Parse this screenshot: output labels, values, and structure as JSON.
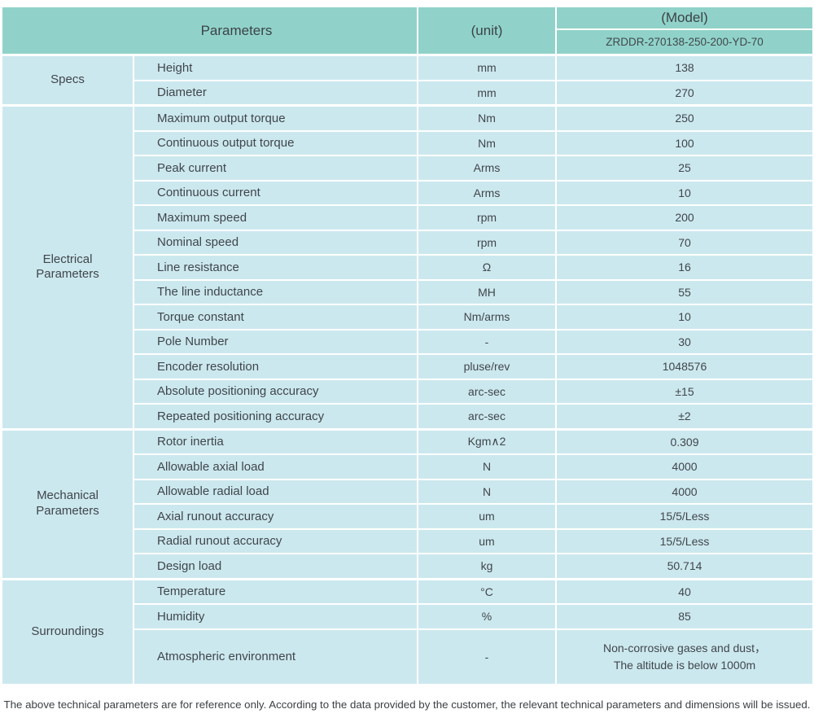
{
  "header": {
    "parameters_label": "Parameters",
    "unit_label": "(unit)",
    "model_label": "(Model)",
    "model_number": "ZRDDR-270138-250-200-YD-70"
  },
  "groups": [
    {
      "label": "Specs",
      "rows": [
        {
          "name": "Height",
          "unit": "mm",
          "value": "138"
        },
        {
          "name": "Diameter",
          "unit": "mm",
          "value": "270"
        }
      ]
    },
    {
      "label": "Electrical Parameters",
      "rows": [
        {
          "name": "Maximum output torque",
          "unit": "Nm",
          "value": "250"
        },
        {
          "name": "Continuous output torque",
          "unit": "Nm",
          "value": "100"
        },
        {
          "name": "Peak current",
          "unit": "Arms",
          "value": "25"
        },
        {
          "name": "Continuous current",
          "unit": "Arms",
          "value": "10"
        },
        {
          "name": "Maximum speed",
          "unit": "rpm",
          "value": "200"
        },
        {
          "name": "Nominal speed",
          "unit": "rpm",
          "value": "70"
        },
        {
          "name": "Line resistance",
          "unit": "Ω",
          "value": "16"
        },
        {
          "name": "The line inductance",
          "unit": "MH",
          "value": "55"
        },
        {
          "name": "Torque constant",
          "unit": "Nm/arms",
          "value": "10"
        },
        {
          "name": "Pole Number",
          "unit": "-",
          "value": "30"
        },
        {
          "name": "Encoder resolution",
          "unit": "pluse/rev",
          "value": "1048576"
        },
        {
          "name": "Absolute positioning accuracy",
          "unit": "arc-sec",
          "value": "±15"
        },
        {
          "name": "Repeated positioning accuracy",
          "unit": "arc-sec",
          "value": "±2"
        }
      ]
    },
    {
      "label": "Mechanical Parameters",
      "rows": [
        {
          "name": "Rotor inertia",
          "unit": "Kgm∧2",
          "value": "0.309"
        },
        {
          "name": "Allowable axial load",
          "unit": "N",
          "value": "4000"
        },
        {
          "name": "Allowable radial load",
          "unit": "N",
          "value": "4000"
        },
        {
          "name": "Axial runout accuracy",
          "unit": "um",
          "value": "15/5/Less"
        },
        {
          "name": "Radial runout accuracy",
          "unit": "um",
          "value": "15/5/Less"
        },
        {
          "name": "Design load",
          "unit": "kg",
          "value": "50.714"
        }
      ]
    },
    {
      "label": "Surroundings",
      "rows": [
        {
          "name": "Temperature",
          "unit": "°C",
          "value": "40"
        },
        {
          "name": "Humidity",
          "unit": "%",
          "value": "85"
        },
        {
          "name": "Atmospheric environment",
          "unit": "-",
          "value": "Non-corrosive gases and dust，\nThe altitude is below 1000m"
        }
      ]
    }
  ],
  "footer": {
    "note": "The above technical parameters are for reference only. According to the data provided by the customer, the relevant technical parameters and dimensions will be issued."
  },
  "colors": {
    "header_bg": "#90d2c9",
    "cell_bg": "#cce8ef",
    "gridline": "#ffffff",
    "text": "#3f464b"
  }
}
